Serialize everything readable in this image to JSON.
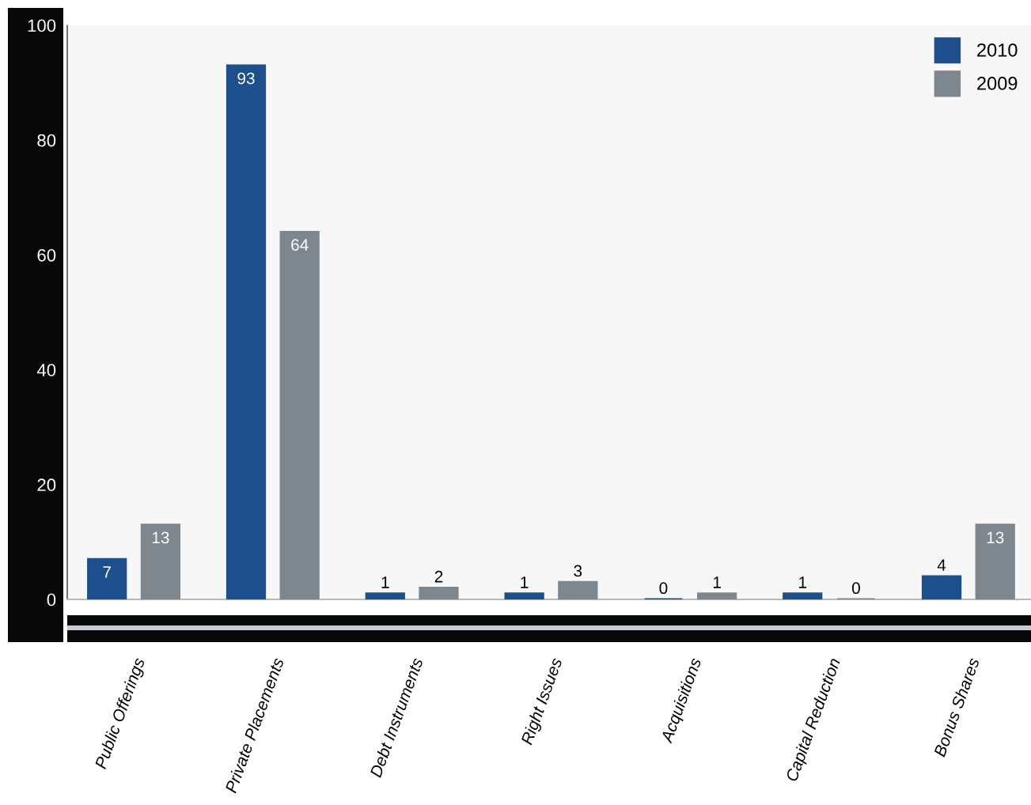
{
  "chart_data": {
    "type": "bar",
    "categories": [
      "Public Offerings",
      "Private Placements",
      "Debt Instruments",
      "Right Issues",
      "Acquisitions",
      "Capital Reduction",
      "Bonus Shares"
    ],
    "series": [
      {
        "name": "2010",
        "color": "#1d4f8c",
        "values": [
          7,
          93,
          1,
          1,
          0,
          1,
          4
        ]
      },
      {
        "name": "2009",
        "color": "#7f878e",
        "values": [
          13,
          64,
          2,
          3,
          1,
          0,
          13
        ]
      }
    ],
    "ylim": [
      0,
      100
    ],
    "yticks": [
      0,
      20,
      40,
      60,
      80,
      100
    ],
    "data_labels": true,
    "legend": "top right"
  }
}
